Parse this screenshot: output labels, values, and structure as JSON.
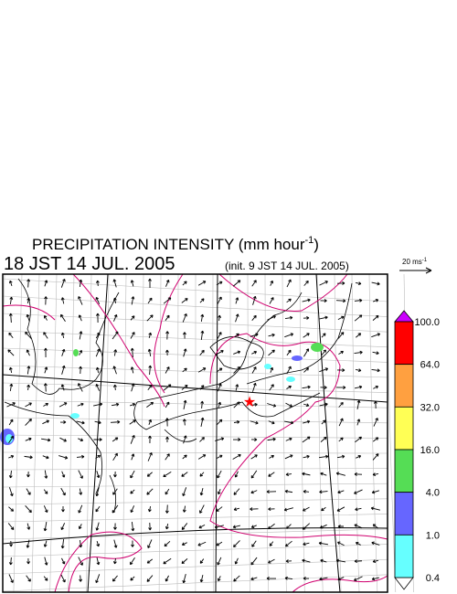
{
  "title": {
    "main": "PRECIPITATION INTENSITY (mm hour",
    "exponent": "-1",
    "close": ")"
  },
  "valid_time": "18 JST 14 JUL. 2005",
  "init_time": "(init. 9 JST 14 JUL. 2005)",
  "vector_legend": {
    "label": "20 ms",
    "exponent": "-1"
  },
  "colorbar": {
    "labels": [
      "100.0",
      "64.0",
      "32.0",
      "16.0",
      "4.0",
      "1.0",
      "0.4"
    ]
  }
}
